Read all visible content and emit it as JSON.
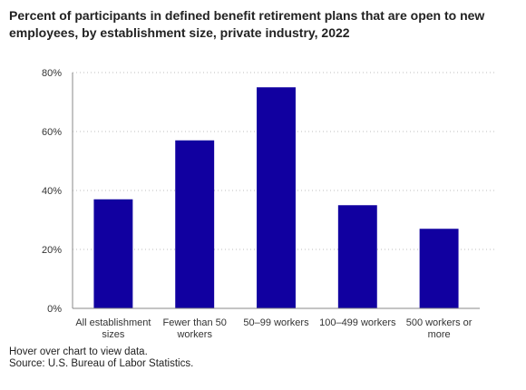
{
  "chart_data": {
    "type": "bar",
    "title": "Percent of participants in defined benefit retirement plans that are open to new employees, by establishment size, private industry, 2022",
    "xlabel": "",
    "ylabel": "",
    "categories": [
      [
        "All establishment",
        "sizes"
      ],
      [
        "Fewer than 50",
        "workers"
      ],
      [
        "50–99 workers"
      ],
      [
        "100–499 workers"
      ],
      [
        "500 workers or",
        "more"
      ]
    ],
    "values": [
      37,
      57,
      75,
      35,
      27
    ],
    "ylim": [
      0,
      80
    ],
    "yticks": [
      0,
      20,
      40,
      60,
      80
    ],
    "ytick_labels": [
      "0%",
      "20%",
      "40%",
      "60%",
      "80%"
    ],
    "grid": true,
    "bar_color": "#1100a0"
  },
  "footer": {
    "note": "Hover over chart to view data.",
    "source": "Source: U.S. Bureau of Labor Statistics."
  }
}
